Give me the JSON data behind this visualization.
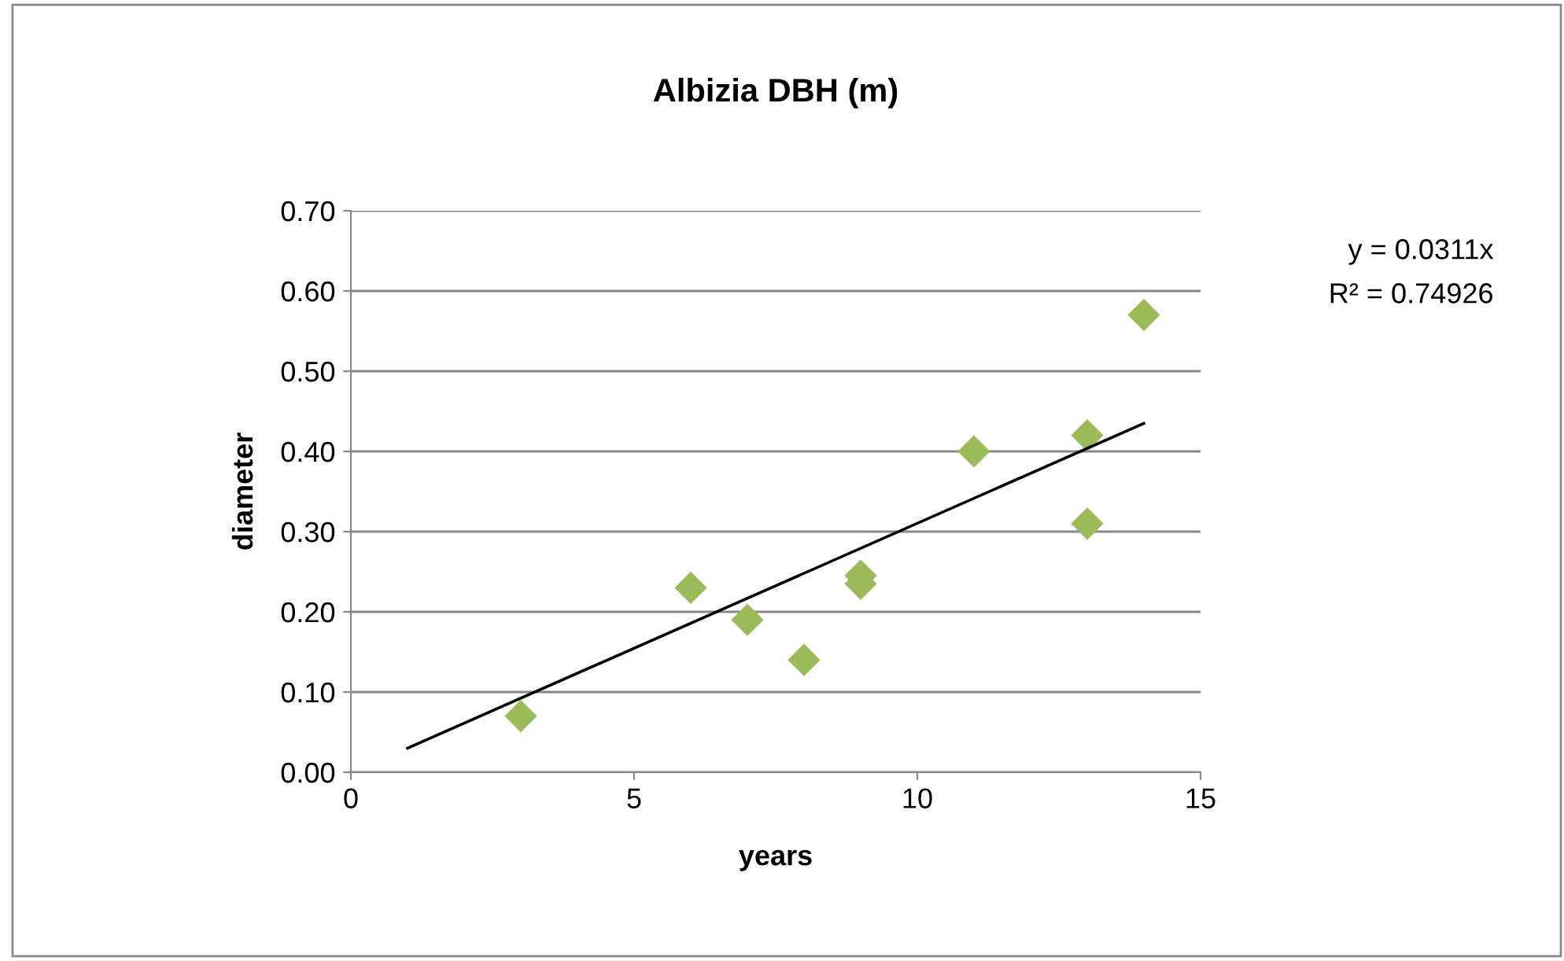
{
  "chart_data": {
    "type": "scatter",
    "title": "Albizia DBH (m)",
    "xlabel": "years",
    "ylabel": "diameter",
    "series": [
      {
        "color": "#9bbb59",
        "marker": "diamond",
        "x": [
          3,
          6,
          7,
          8,
          9,
          9,
          11,
          13,
          13,
          14
        ],
        "values": [
          0.07,
          0.23,
          0.19,
          0.14,
          0.245,
          0.235,
          0.4,
          0.42,
          0.31,
          0.57
        ]
      },
      {
        "type": "line",
        "color": "#000000",
        "marker": "none",
        "x": [
          1,
          14
        ],
        "values": [
          0.03,
          0.435
        ]
      }
    ],
    "xlim": [
      0,
      15
    ],
    "xticks": [
      0,
      5,
      10,
      15
    ],
    "ylim": [
      0,
      0.7
    ],
    "yticks": [
      {
        "value": 0,
        "label": "0.00"
      },
      {
        "value": 0.1,
        "label": "0.10"
      },
      {
        "value": 0.2,
        "label": "0.20"
      },
      {
        "value": 0.3,
        "label": "0.30"
      },
      {
        "value": 0.4,
        "label": "0.40"
      },
      {
        "value": 0.5,
        "label": "0.50"
      },
      {
        "value": 0.6,
        "label": "0.60"
      },
      {
        "value": 0.7,
        "label": "0.70"
      }
    ],
    "grid": "y",
    "annotations": [
      "y = 0.0311x",
      "R² = 0.74926"
    ]
  }
}
